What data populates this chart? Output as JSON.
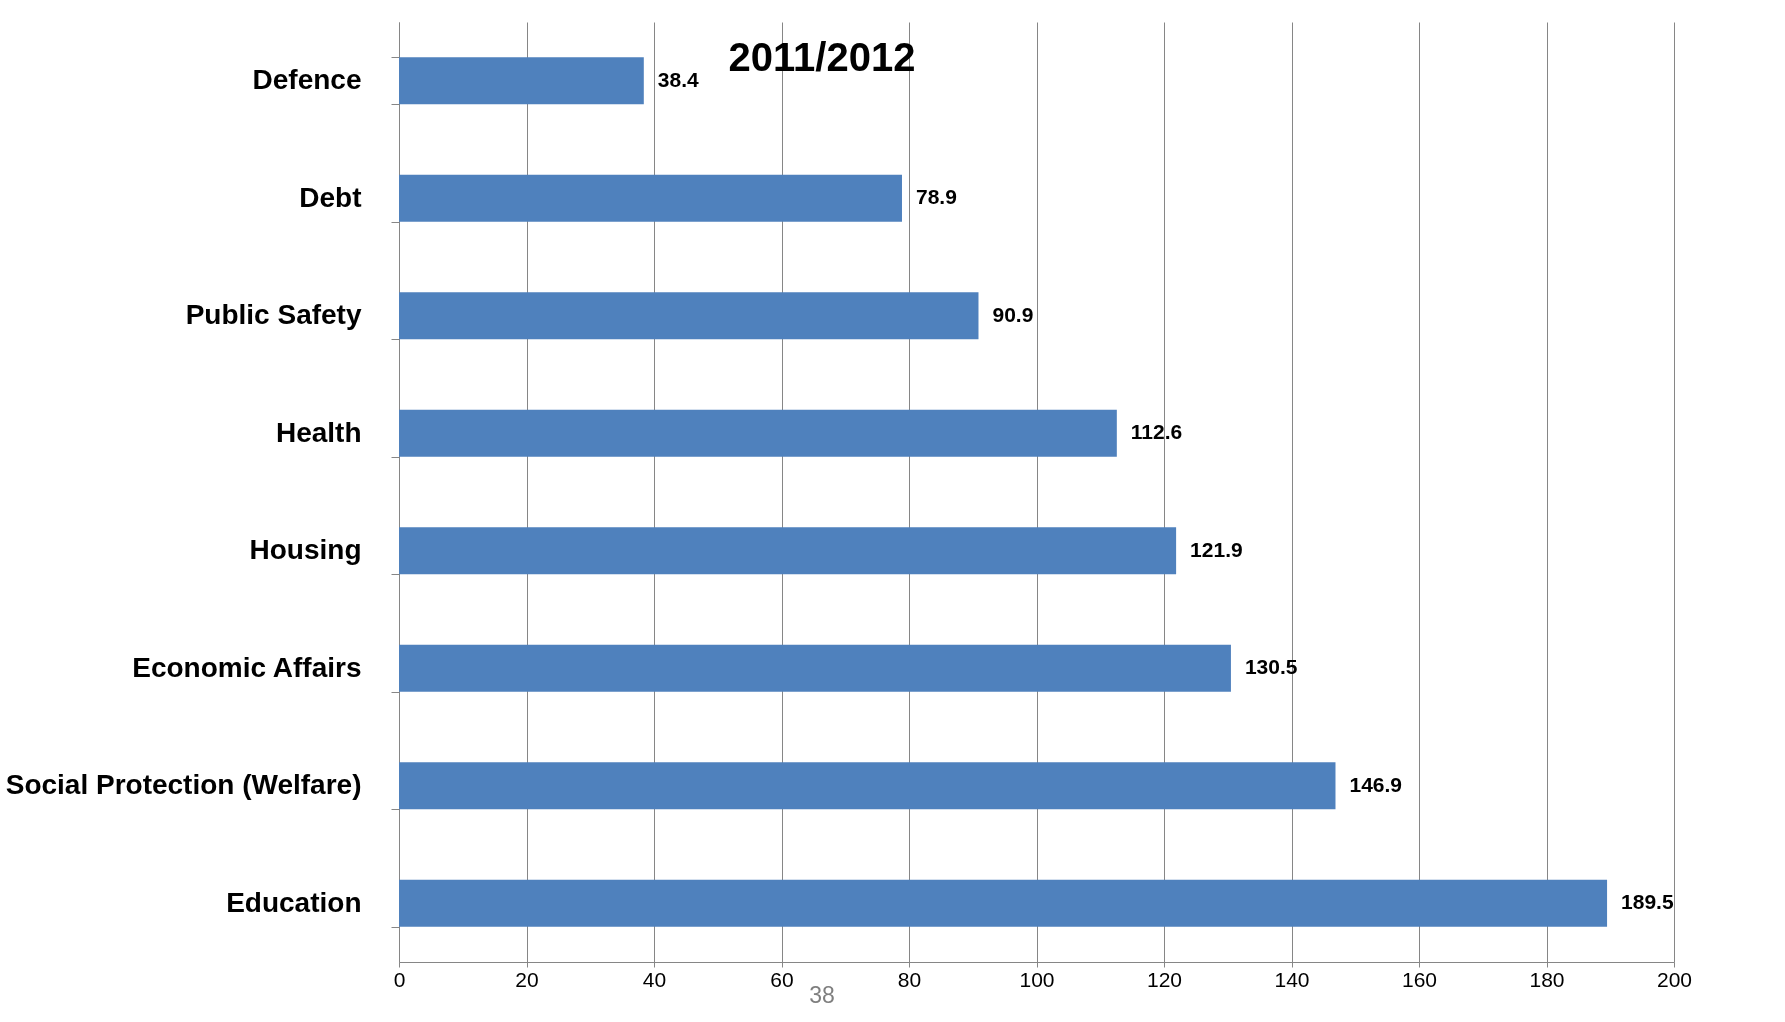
{
  "chart_data": {
    "type": "bar",
    "orientation": "horizontal",
    "title": "2011/2012",
    "categories": [
      "Defence",
      "Debt",
      "Public Safety",
      "Health",
      "Housing",
      "Economic Affairs",
      "Social Protection (Welfare)",
      "Education"
    ],
    "values": [
      38.4,
      78.9,
      90.9,
      112.6,
      121.9,
      130.5,
      146.9,
      189.5
    ],
    "color": "#4f81bd",
    "xlim": [
      0,
      200
    ],
    "xticks": [
      0,
      20,
      40,
      60,
      80,
      100,
      120,
      140,
      160,
      180,
      200
    ],
    "grid": "x",
    "data_labels": true,
    "annotations": [
      "38"
    ]
  }
}
